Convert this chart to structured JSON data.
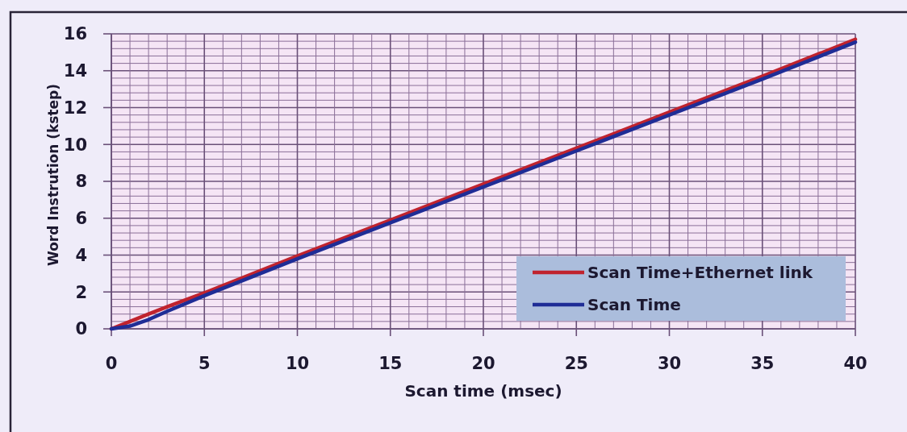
{
  "chart_data": {
    "type": "line",
    "xlabel": "Scan time (msec)",
    "ylabel": "Word Instrution (kstep)",
    "x": [
      0,
      1,
      2,
      3,
      5,
      10,
      15,
      20,
      25,
      30,
      35,
      40
    ],
    "series": [
      {
        "name": "Scan Time+Ethernet link",
        "color": "#c0232e",
        "values": [
          0,
          0.4,
          0.8,
          1.2,
          1.95,
          3.95,
          5.9,
          7.85,
          9.8,
          11.75,
          13.7,
          15.7
        ]
      },
      {
        "name": "Scan Time",
        "color": "#1f2d96",
        "values": [
          0,
          0.15,
          0.5,
          0.95,
          1.8,
          3.8,
          5.75,
          7.7,
          9.65,
          11.6,
          13.55,
          15.55
        ]
      }
    ],
    "xlim": [
      0,
      40
    ],
    "xticks": [
      0,
      {
        "value": 1,
        "label": null
      },
      {
        "value": 2,
        "label": null
      },
      {
        "value": 3,
        "label": null
      },
      {
        "value": 4,
        "label": null
      },
      5,
      {
        "value": 6,
        "label": null
      },
      {
        "value": 7,
        "label": null
      },
      {
        "value": 8,
        "label": null
      },
      {
        "value": 9,
        "label": null
      },
      10,
      {
        "value": 11,
        "label": null
      },
      {
        "value": 12,
        "label": null
      },
      {
        "value": 13,
        "label": null
      },
      {
        "value": 14,
        "label": null
      },
      15,
      {
        "value": 16,
        "label": null
      },
      {
        "value": 17,
        "label": null
      },
      {
        "value": 18,
        "label": null
      },
      {
        "value": 19,
        "label": null
      },
      20,
      {
        "value": 21,
        "label": null
      },
      {
        "value": 22,
        "label": null
      },
      {
        "value": 23,
        "label": null
      },
      {
        "value": 24,
        "label": null
      },
      25,
      {
        "value": 26,
        "label": null
      },
      {
        "value": 27,
        "label": null
      },
      {
        "value": 28,
        "label": null
      },
      {
        "value": 29,
        "label": null
      },
      30,
      {
        "value": 31,
        "label": null
      },
      {
        "value": 32,
        "label": null
      },
      {
        "value": 33,
        "label": null
      },
      {
        "value": 34,
        "label": null
      },
      35,
      {
        "value": 36,
        "label": null
      },
      {
        "value": 37,
        "label": null
      },
      {
        "value": 38,
        "label": null
      },
      {
        "value": 39,
        "label": null
      },
      40
    ],
    "ylim": [
      0,
      16
    ],
    "yticks": [
      0,
      {
        "value": 0.4,
        "label": null
      },
      {
        "value": 0.8,
        "label": null
      },
      {
        "value": 1.2,
        "label": null
      },
      {
        "value": 1.6,
        "label": null
      },
      2,
      {
        "value": 2.4,
        "label": null
      },
      {
        "value": 2.8,
        "label": null
      },
      {
        "value": 3.2,
        "label": null
      },
      {
        "value": 3.6,
        "label": null
      },
      4,
      {
        "value": 4.4,
        "label": null
      },
      {
        "value": 4.8,
        "label": null
      },
      {
        "value": 5.2,
        "label": null
      },
      {
        "value": 5.6,
        "label": null
      },
      6,
      {
        "value": 6.4,
        "label": null
      },
      {
        "value": 6.8,
        "label": null
      },
      {
        "value": 7.2,
        "label": null
      },
      {
        "value": 7.6,
        "label": null
      },
      8,
      {
        "value": 8.4,
        "label": null
      },
      {
        "value": 8.8,
        "label": null
      },
      {
        "value": 9.2,
        "label": null
      },
      {
        "value": 9.6,
        "label": null
      },
      10,
      {
        "value": 10.4,
        "label": null
      },
      {
        "value": 10.8,
        "label": null
      },
      {
        "value": 11.2,
        "label": null
      },
      {
        "value": 11.6,
        "label": null
      },
      12,
      {
        "value": 12.4,
        "label": null
      },
      {
        "value": 12.8,
        "label": null
      },
      {
        "value": 13.2,
        "label": null
      },
      {
        "value": 13.6,
        "label": null
      },
      14,
      {
        "value": 14.4,
        "label": null
      },
      {
        "value": 14.8,
        "label": null
      },
      {
        "value": 15.2,
        "label": null
      },
      {
        "value": 15.6,
        "label": null
      },
      16
    ],
    "grid": true,
    "legend": "bottom right",
    "line_style": "solid"
  }
}
